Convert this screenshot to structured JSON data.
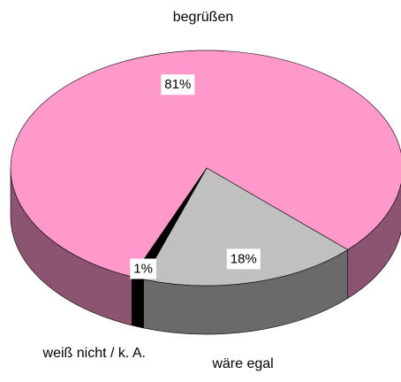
{
  "chart_data": {
    "type": "pie3d",
    "categories": [
      "begrüßen",
      "wäre egal",
      "weiß nicht / k. A."
    ],
    "values": [
      81,
      18,
      1
    ],
    "value_labels": [
      "81%",
      "18%",
      "1%"
    ],
    "colors": [
      "#ff99cc",
      "#c0c0c0",
      "#000000"
    ]
  }
}
